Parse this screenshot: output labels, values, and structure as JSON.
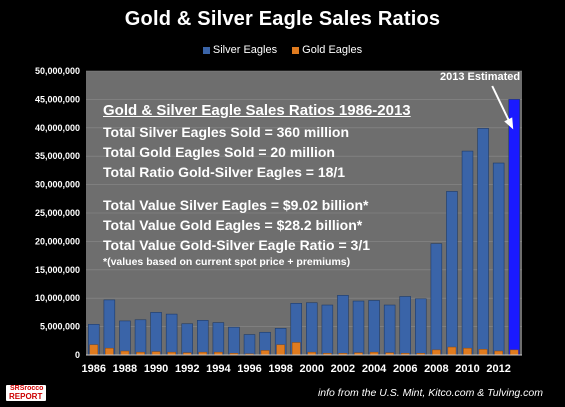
{
  "title": "Gold & Silver Eagle Sales Ratios",
  "legend": [
    {
      "name": "Silver Eagles",
      "color": "#3a64a8"
    },
    {
      "name": "Gold Eagles",
      "color": "#e07b1f"
    }
  ],
  "info": {
    "header": "Gold & Silver Eagle Sales Ratios 1986-2013",
    "line1": "Total Silver Eagles Sold = 360 million",
    "line2": "Total Gold Eagles Sold = 20 million",
    "line3": "Total Ratio Gold-Silver Eagles = 18/1",
    "line4": "Total Value Silver Eagles = $9.02 billion*",
    "line5": "Total Value Gold Eagles = $28.2 billion*",
    "line6": "Total Value Gold-Silver Eagle Ratio = 3/1",
    "note": "*(values based on current spot price + premiums)"
  },
  "annotation": "2013 Estimated",
  "credit": "info from the U.S. Mint, Kitco.com & Tulving.com",
  "logo": {
    "line1": "SRSrocco",
    "line2": "REPORT"
  },
  "chart_data": {
    "type": "bar",
    "stacked": false,
    "ylim": [
      0,
      50000000
    ],
    "yticks": [
      "0",
      "5,000,000",
      "10,000,000",
      "15,000,000",
      "20,000,000",
      "25,000,000",
      "30,000,000",
      "35,000,000",
      "40,000,000",
      "45,000,000",
      "50,000,000"
    ],
    "categories": [
      "1986",
      "1987",
      "1988",
      "1989",
      "1990",
      "1991",
      "1992",
      "1993",
      "1994",
      "1995",
      "1996",
      "1997",
      "1998",
      "1999",
      "2000",
      "2001",
      "2002",
      "2003",
      "2004",
      "2005",
      "2006",
      "2007",
      "2008",
      "2009",
      "2010",
      "2011",
      "2012",
      "2013"
    ],
    "xtick_labels": [
      "1986",
      "",
      "1988",
      "",
      "1990",
      "",
      "1992",
      "",
      "1994",
      "",
      "1996",
      "",
      "1998",
      "",
      "2000",
      "",
      "2002",
      "",
      "2004",
      "",
      "2006",
      "",
      "2008",
      "",
      "2010",
      "",
      "2012",
      ""
    ],
    "series": [
      {
        "name": "Silver Eagles",
        "color": "#3a64a8",
        "values": [
          5400000,
          9700000,
          6000000,
          6200000,
          7500000,
          7200000,
          5500000,
          6100000,
          5700000,
          4900000,
          3600000,
          4000000,
          4700000,
          9100000,
          9200000,
          8800000,
          10500000,
          9500000,
          9600000,
          8800000,
          10300000,
          9900000,
          19600000,
          28800000,
          35900000,
          39900000,
          33800000,
          45000000
        ]
      },
      {
        "name": "Gold Eagles",
        "color": "#e07b1f",
        "values": [
          1800000,
          1200000,
          700000,
          500000,
          600000,
          500000,
          400000,
          500000,
          500000,
          300000,
          200000,
          800000,
          1800000,
          2200000,
          500000,
          300000,
          300000,
          400000,
          500000,
          400000,
          300000,
          300000,
          900000,
          1400000,
          1200000,
          1000000,
          700000,
          900000
        ]
      }
    ],
    "highlight": {
      "category": "2013",
      "color": "#1a1aff"
    }
  }
}
